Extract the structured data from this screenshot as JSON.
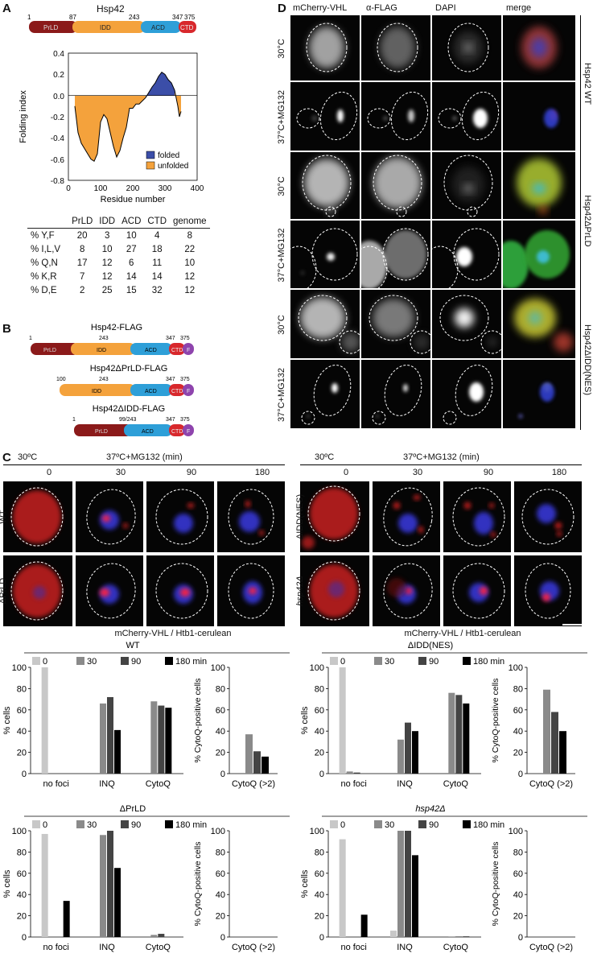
{
  "panels": {
    "A": "A",
    "B": "B",
    "C": "C",
    "D": "D"
  },
  "panelA": {
    "title": "Hsp42",
    "domains": [
      {
        "name": "PrLD",
        "color": "#8b1a1a"
      },
      {
        "name": "IDD",
        "color": "#f4a23c"
      },
      {
        "name": "ACD",
        "color": "#2e9fd8"
      },
      {
        "name": "CTD",
        "color": "#d8282c"
      }
    ],
    "boundaries": [
      "1",
      "87",
      "243",
      "347",
      "375"
    ],
    "plot": {
      "ylabel": "Folding index",
      "xlabel": "Residue number",
      "xticks": [
        "0",
        "100",
        "200",
        "300",
        "400"
      ],
      "yticks": [
        "0.4",
        "0.2",
        "0.0",
        "-0.2",
        "-0.4",
        "-0.6",
        "-0.8"
      ],
      "legend_folded": "folded",
      "legend_unfolded": "unfolded"
    },
    "table": {
      "header": [
        "PrLD",
        "IDD",
        "ACD",
        "CTD",
        "genome"
      ],
      "rows": [
        {
          "label": "% Y,F",
          "v": [
            "20",
            "3",
            "10",
            "4",
            "8"
          ]
        },
        {
          "label": "% I,L,V",
          "v": [
            "8",
            "10",
            "27",
            "18",
            "22"
          ]
        },
        {
          "label": "% Q,N",
          "v": [
            "17",
            "12",
            "6",
            "11",
            "10"
          ]
        },
        {
          "label": "% K,R",
          "v": [
            "7",
            "12",
            "14",
            "14",
            "12"
          ]
        },
        {
          "label": "% D,E",
          "v": [
            "2",
            "25",
            "15",
            "32",
            "12"
          ]
        }
      ]
    }
  },
  "panelB": {
    "constructs": [
      {
        "title": "Hsp42-FLAG",
        "labels": [
          "1",
          "243",
          "347",
          "375"
        ],
        "segs": [
          "PrLD",
          "IDD",
          "ACD",
          "CTD",
          "F"
        ]
      },
      {
        "title": "Hsp42ΔPrLD-FLAG",
        "labels": [
          "100",
          "243",
          "347",
          "375"
        ],
        "segs": [
          "IDD",
          "ACD",
          "CTD",
          "F"
        ]
      },
      {
        "title": "Hsp42ΔIDD-FLAG",
        "labels": [
          "1",
          "99/243",
          "347",
          "375"
        ],
        "segs": [
          "PrLD",
          "ACD",
          "CTD",
          "F"
        ]
      }
    ]
  },
  "panelC": {
    "left": {
      "cond0": "30ºC",
      "cond1": "37ºC+MG132 (min)",
      "times": [
        "0",
        "30",
        "90",
        "180"
      ],
      "rows": [
        "WT",
        "ΔPrLD"
      ]
    },
    "right": {
      "cond0": "30ºC",
      "cond1": "37ºC+MG132 (min)",
      "times": [
        "0",
        "30",
        "90",
        "180"
      ],
      "rows": [
        "ΔIDD(NES)",
        "hsp42Δ"
      ]
    },
    "caption": "mCherry-VHL / Htb1-cerulean"
  },
  "panelD": {
    "columns": [
      "mCherry-VHL",
      "α-FLAG",
      "DAPI",
      "merge"
    ],
    "conditions": [
      "30°C",
      "37°C+MG132",
      "30°C",
      "37°C+MG132",
      "30°C",
      "37°C+MG132"
    ],
    "groups": [
      "Hsp42 WT",
      "Hsp42ΔPrLD",
      "Hsp42ΔIDD(NES)"
    ]
  },
  "chart_data": [
    {
      "type": "line",
      "title": "",
      "xlabel": "Residue number",
      "ylabel": "Folding index",
      "xlim": [
        0,
        400
      ],
      "ylim": [
        -0.8,
        0.4
      ],
      "series": [
        {
          "name": "folding index",
          "x": [
            20,
            30,
            40,
            50,
            60,
            70,
            80,
            90,
            100,
            110,
            120,
            130,
            140,
            150,
            160,
            170,
            180,
            190,
            200,
            210,
            220,
            230,
            240,
            250,
            260,
            270,
            280,
            290,
            300,
            310,
            320,
            330,
            340,
            345,
            350
          ],
          "y": [
            -0.1,
            -0.35,
            -0.45,
            -0.5,
            -0.55,
            -0.6,
            -0.62,
            -0.55,
            -0.25,
            -0.18,
            -0.22,
            -0.35,
            -0.48,
            -0.58,
            -0.52,
            -0.4,
            -0.3,
            -0.12,
            -0.12,
            -0.08,
            -0.08,
            -0.05,
            -0.02,
            0.03,
            0.08,
            0.12,
            0.18,
            0.22,
            0.2,
            0.15,
            0.12,
            0.05,
            -0.1,
            -0.2,
            -0.15
          ]
        }
      ]
    },
    {
      "type": "bar",
      "title": "WT",
      "categories": [
        "no foci",
        "INQ",
        "CytoQ"
      ],
      "series": [
        {
          "name": "0",
          "values": [
            100,
            0,
            0
          ]
        },
        {
          "name": "30",
          "values": [
            0,
            66,
            68
          ]
        },
        {
          "name": "90",
          "values": [
            0,
            72,
            64
          ]
        },
        {
          "name": "180 min",
          "values": [
            0,
            41,
            62
          ]
        }
      ],
      "ylabel": "% cells",
      "ylim": [
        0,
        100
      ]
    },
    {
      "type": "bar",
      "title": "",
      "categories": [
        "CytoQ (>2)"
      ],
      "series": [
        {
          "name": "0",
          "values": [
            0
          ]
        },
        {
          "name": "30",
          "values": [
            37
          ]
        },
        {
          "name": "90",
          "values": [
            21
          ]
        },
        {
          "name": "180 min",
          "values": [
            16
          ]
        }
      ],
      "ylabel": "% CytoQ-positive cells",
      "ylim": [
        0,
        100
      ]
    },
    {
      "type": "bar",
      "title": "ΔIDD(NES)",
      "categories": [
        "no foci",
        "INQ",
        "CytoQ"
      ],
      "series": [
        {
          "name": "0",
          "values": [
            100,
            0,
            0
          ]
        },
        {
          "name": "30",
          "values": [
            2,
            32,
            76
          ]
        },
        {
          "name": "90",
          "values": [
            1,
            48,
            74
          ]
        },
        {
          "name": "180 min",
          "values": [
            0,
            40,
            66
          ]
        }
      ],
      "ylabel": "% cells",
      "ylim": [
        0,
        100
      ]
    },
    {
      "type": "bar",
      "title": "",
      "categories": [
        "CytoQ (>2)"
      ],
      "series": [
        {
          "name": "0",
          "values": [
            0
          ]
        },
        {
          "name": "30",
          "values": [
            79
          ]
        },
        {
          "name": "90",
          "values": [
            58
          ]
        },
        {
          "name": "180 min",
          "values": [
            40
          ]
        }
      ],
      "ylabel": "% CytoQ-positive cells",
      "ylim": [
        0,
        100
      ]
    },
    {
      "type": "bar",
      "title": "ΔPrLD",
      "categories": [
        "no foci",
        "INQ",
        "CytoQ"
      ],
      "series": [
        {
          "name": "0",
          "values": [
            97,
            0,
            0
          ]
        },
        {
          "name": "30",
          "values": [
            0,
            96,
            2
          ]
        },
        {
          "name": "90",
          "values": [
            0,
            100,
            3
          ]
        },
        {
          "name": "180 min",
          "values": [
            34,
            65,
            0
          ]
        }
      ],
      "ylabel": "% cells",
      "ylim": [
        0,
        100
      ]
    },
    {
      "type": "bar",
      "title": "",
      "categories": [
        "CytoQ (>2)"
      ],
      "series": [
        {
          "name": "0",
          "values": [
            0
          ]
        },
        {
          "name": "30",
          "values": [
            0
          ]
        },
        {
          "name": "90",
          "values": [
            0
          ]
        },
        {
          "name": "180 min",
          "values": [
            0
          ]
        }
      ],
      "ylabel": "% CytoQ-positive cells",
      "ylim": [
        0,
        100
      ]
    },
    {
      "type": "bar",
      "title": "hsp42Δ",
      "categories": [
        "no foci",
        "INQ",
        "CytoQ"
      ],
      "series": [
        {
          "name": "0",
          "values": [
            92,
            6,
            0
          ]
        },
        {
          "name": "30",
          "values": [
            0,
            100,
            0.5
          ]
        },
        {
          "name": "90",
          "values": [
            0,
            100,
            0.5
          ]
        },
        {
          "name": "180 min",
          "values": [
            21,
            77,
            0.5
          ]
        }
      ],
      "ylabel": "% cells",
      "ylim": [
        0,
        100
      ]
    },
    {
      "type": "bar",
      "title": "",
      "categories": [
        "CytoQ (>2)"
      ],
      "series": [
        {
          "name": "0",
          "values": [
            0
          ]
        },
        {
          "name": "30",
          "values": [
            0
          ]
        },
        {
          "name": "90",
          "values": [
            0
          ]
        },
        {
          "name": "180 min",
          "values": [
            0
          ]
        }
      ],
      "ylabel": "% CytoQ-positive cells",
      "ylim": [
        0,
        100
      ]
    }
  ],
  "colors": {
    "c0": "#c8c8c8",
    "c30": "#8a8a8a",
    "c90": "#444444",
    "c180": "#000000",
    "folded": "#3b4ea8",
    "unfolded": "#f4a23c"
  }
}
